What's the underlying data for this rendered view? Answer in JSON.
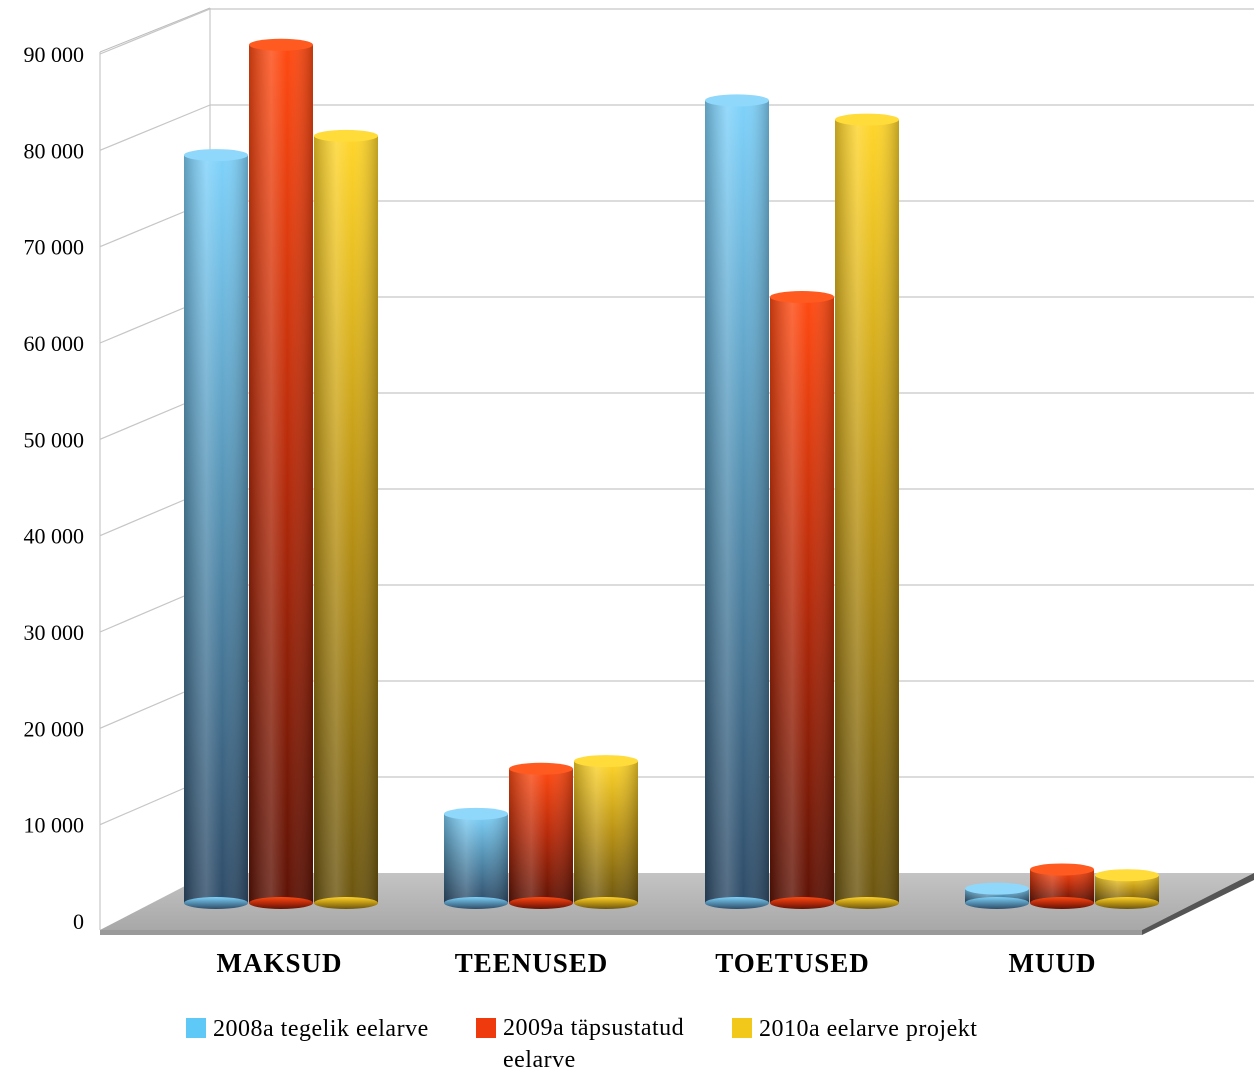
{
  "chart_data": {
    "type": "bar",
    "title": "",
    "xlabel": "",
    "ylabel": "",
    "ylim": [
      0,
      90000
    ],
    "yticks": [
      "0",
      "10 000",
      "20 000",
      "30 000",
      "40 000",
      "50 000",
      "60 000",
      "70 000",
      "80 000",
      "90 000"
    ],
    "categories": [
      "MAKSUD",
      "TEENUSED",
      "TOETUSED",
      "MUUD"
    ],
    "grid": true,
    "legend_position": "bottom",
    "series": [
      {
        "name": "2008a tegelik eelarve",
        "values": [
          78000,
          9300,
          83700,
          1500
        ],
        "color": "#5ec8f7"
      },
      {
        "name": "2009a täpsustatud eelarve",
        "values": [
          89500,
          14000,
          63200,
          3500
        ],
        "color": "#ee3a0c"
      },
      {
        "name": "2010a eelarve projekt",
        "values": [
          80000,
          14800,
          81700,
          2900
        ],
        "color": "#f2c81b"
      }
    ]
  }
}
